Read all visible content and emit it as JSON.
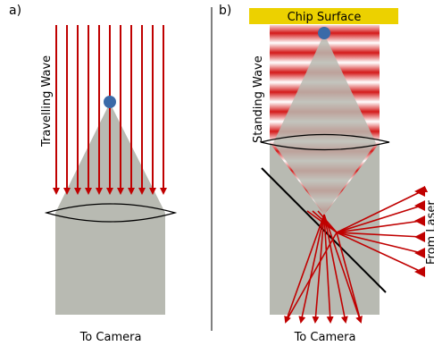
{
  "panel_a": {
    "label": "a)",
    "side_label": "Travelling Wave",
    "bottom_label": "To Camera"
  },
  "panel_b": {
    "label": "b)",
    "chip_label": "Chip Surface",
    "side_label": "Standing Wave",
    "laser_label": "From Laser",
    "bottom_label": "To Camera"
  },
  "colors": {
    "beam_red": "#c00000",
    "gray_cone": "#b8bab2",
    "particle_blue": "#3a6aa8",
    "chip_yellow": "#ecd100",
    "divider": "#000000"
  }
}
